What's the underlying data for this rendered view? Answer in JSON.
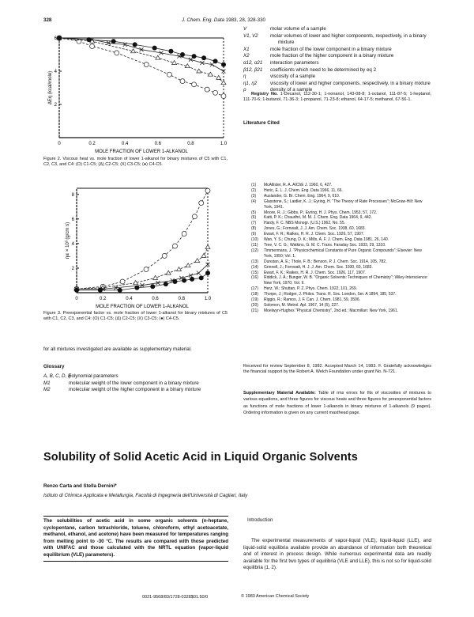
{
  "header": {
    "page_number": "328",
    "journal": "J. Chem. Eng. Data",
    "year_vol": "1983, 28, 328-330"
  },
  "figure2": {
    "caption": "Figure 2. Viscous heat vs. mole fraction of lower 1-alkanol for binary mixtures of C5 with C1, C2, C3, and C4: (O) C1-C5; (Δ) C2-C5; (X) C3-C5; (●) C4-C5.",
    "chart_data": {
      "type": "line",
      "xlabel": "MOLE FRACTION OF LOWER 1-ALKANOL",
      "ylabel": "ΔEη (kcal/mole)",
      "xlim": [
        0,
        1.0
      ],
      "ylim": [
        0,
        6
      ],
      "x_ticks": [
        "0",
        "0.2",
        "0.4",
        "0.6",
        "0.8",
        "1.0"
      ],
      "y_ticks": [
        "2",
        "4",
        "6"
      ],
      "series": [
        {
          "marker": "circle-open",
          "x": [
            0,
            0.12,
            0.2,
            0.35,
            0.53,
            0.67,
            0.75,
            0.82,
            0.9,
            0.95,
            1.0
          ],
          "y": [
            6.0,
            5.8,
            5.5,
            5.1,
            4.4,
            3.8,
            3.4,
            3.2,
            2.9,
            2.7,
            2.5
          ]
        },
        {
          "marker": "triangle",
          "x": [
            0,
            0.2,
            0.45,
            0.6,
            0.7,
            0.78,
            0.85,
            0.92,
            0.97,
            1.0
          ],
          "y": [
            6.0,
            5.8,
            5.2,
            4.8,
            4.5,
            4.3,
            4.0,
            3.8,
            3.6,
            3.3
          ]
        },
        {
          "marker": "cross",
          "x": [
            0,
            0.2,
            0.3,
            0.4,
            0.5,
            0.62,
            0.73,
            0.8,
            0.87,
            0.93,
            1.0
          ],
          "y": [
            6.0,
            5.9,
            5.7,
            5.6,
            5.3,
            5.1,
            4.9,
            4.7,
            4.5,
            4.4,
            4.0
          ]
        },
        {
          "marker": "circle-filled",
          "x": [
            0,
            0.18,
            0.33,
            0.46,
            0.58,
            0.68,
            0.75,
            0.82,
            0.88,
            0.95,
            1.0
          ],
          "y": [
            6.0,
            5.9,
            5.8,
            5.6,
            5.4,
            5.2,
            5.0,
            4.9,
            4.8,
            4.6,
            4.4
          ]
        }
      ]
    }
  },
  "figure3": {
    "caption": "Figure 3. Preexponential factor vs. mole fraction of lower 1-alkanol for binary mixtures of C5 with C1, C2, C3, and C4: (O) C1-C5; (Δ) C2-C5; (X) C3-C5; (●) C4-C5.",
    "chart_data": {
      "type": "line",
      "xlabel": "MOLE FRACTION OF LOWER 1-ALKANOL",
      "ylabel": "ηιε × 10³ (g/cm s)",
      "xlim": [
        0,
        1.0
      ],
      "ylim": [
        0,
        8.5
      ],
      "x_ticks": [
        "0",
        "0.2",
        "0.4",
        "0.6",
        "0.8",
        "1.0"
      ],
      "y_ticks": [
        "2",
        "4",
        "6",
        "8"
      ],
      "series": [
        {
          "marker": "circle-open",
          "x": [
            0,
            0.2,
            0.35,
            0.53,
            0.67,
            0.75,
            0.82,
            0.9,
            0.95,
            1.0
          ],
          "y": [
            0.3,
            0.5,
            0.9,
            1.9,
            3.0,
            3.8,
            4.8,
            6.2,
            7.3,
            8.3
          ]
        },
        {
          "marker": "triangle",
          "x": [
            0,
            0.2,
            0.45,
            0.6,
            0.7,
            0.78,
            0.85,
            0.92,
            0.97,
            1.0
          ],
          "y": [
            0.3,
            0.4,
            0.8,
            1.2,
            1.6,
            1.9,
            2.2,
            2.6,
            3.0,
            3.7
          ]
        },
        {
          "marker": "cross",
          "x": [
            0,
            0.2,
            0.3,
            0.5,
            0.62,
            0.73,
            0.8,
            0.87,
            0.93,
            1.0
          ],
          "y": [
            0.3,
            0.3,
            0.4,
            0.6,
            0.8,
            1.0,
            1.2,
            1.4,
            1.6,
            2.3
          ]
        },
        {
          "marker": "circle-filled",
          "x": [
            0,
            0.18,
            0.33,
            0.46,
            0.58,
            0.68,
            0.75,
            0.82,
            0.88,
            0.95,
            1.0
          ],
          "y": [
            0.2,
            0.2,
            0.2,
            0.4,
            0.5,
            0.7,
            0.9,
            1.0,
            1.1,
            1.2,
            1.6
          ]
        }
      ]
    }
  },
  "left_text": {
    "continuation": "for all mixtures investigated are available as supplementary material.",
    "glossary_heading": "Glossary",
    "glossary": [
      {
        "symbol": "A, B, C, D, E",
        "def": "polynomial parameters"
      },
      {
        "symbol": "M1",
        "def": "molecular weight of the lower component in a binary mixture"
      },
      {
        "symbol": "M2",
        "def": "molecular weight of the higher component in a binary mixture"
      }
    ]
  },
  "nomenclature": [
    {
      "symbol": "V",
      "def": "molar volume of a sample"
    },
    {
      "symbol": "V1, V2",
      "def": "molar volumes of lower and higher components, respectively, in a binary mixture"
    },
    {
      "symbol": "X1",
      "def": "mole fraction of the lower component in a binary mixture"
    },
    {
      "symbol": "X2",
      "def": "mole fraction of the higher component in a binary mixture"
    },
    {
      "symbol": "α12, α21",
      "def": "interaction parameters"
    },
    {
      "symbol": "β12, β21",
      "def": "coefficients which need to be determined by eq 2"
    },
    {
      "symbol": "η",
      "def": "viscosity of a sample"
    },
    {
      "symbol": "η1, η2",
      "def": "viscosity of lower and higher components, respectively, in a binary mixture"
    },
    {
      "symbol": "ρ",
      "def": "density of a sample"
    }
  ],
  "registry": {
    "label": "Registry No.",
    "text": "1-Decanol, 112-30-1; 1-nonanol, 143-08-8; 1-octanol, 111-87-5; 1-heptanol, 111-70-6; 1-butanol, 71-36-3; 1-propanol, 71-23-8; ethanol, 64-17-5; methanol, 67-56-1."
  },
  "literature": {
    "heading": "Literature Cited",
    "refs": [
      "McAllister, R. A. AIChE J. 1960, 6, 427.",
      "Heric, E. L. J. Chem. Eng. Data 1966, 11, 66.",
      "Auslander, G. Br. Chem. Eng. 1964, 9, 610.",
      "Glasstone, S.; Laidler, K. J.; Eyring, H. \"The Theory of Rate Processes\"; McGraw-Hill: New York, 1941.",
      "Moore, R. J.; Gibbs, P.; Eyring, H. J. Phys. Chem. 1953, 57, 172.",
      "Katti, P. K.; Chaudhri, M. M. J. Chem. Eng. Data 1964, 9, 442.",
      "Hardy, F. C. NBS Monogr. (U.S.) 1962, No. 55.",
      "Jones, G.; Fornwalt, J. J. Am. Chem. Soc. 1938, 60, 1683.",
      "Ewart, F. R.; Raikes, H. R. J. Chem. Soc. 1926, 57, 1907.",
      "Wan, Y. S.; Chung, D. K.; Mills, A. F. J. Chem. Eng. Data 1981, 26, 140.",
      "Tree, V. C. G.; Watkins, G. M. C. Trans. Faraday Soc. 1933, 29, 1310.",
      "Timmermans, J. \"Physicochemical Constants of Pure Organic Compounds\"; Elsevier: New York, 1950; Vol. 1.",
      "Dunstan, A. E.; Thole, F. B.; Benson, P. J. Chem. Soc. 1914, 105, 782.",
      "Grinnell, J.; Fornwalt, H. J. J. Am. Chem. Soc. 1930, 60, 1683.",
      "Ewart, F. K.; Raikes, H. R. J. Chem. Soc. 1926, 117, 1907.",
      "Riddick, J. A.; Bunger, W. B. \"Organic Solvents: Techniques of Chemistry\"; Wiley-Interscience: New York, 1970; Vol. II.",
      "Herz, W.; Shuttan, P. Z. Phys. Chem. 1922, 101, 269.",
      "Thorpe, J.; Rodger, J. Philos. Trans. R. Soc. London, Ser. A 1894, 185, 537.",
      "Riggio, R.; Ramos, J. F. Can. J. Chem. 1981, 59, 3506.",
      "Solomon, M. Metrol. Apl. 1967, 14 (5), 227.",
      "Moelwyn-Hughes \"Physical Chemistry\", 2nd ed.; Macmillan: New York, 1961."
    ]
  },
  "received": "Received for review September 8, 1982. Accepted March 14, 1983. F. Gratefully acknowledges the financial support by the Robert A. Welch Foundation under grant No. N-721.",
  "supplementary": {
    "label": "Supplementary Material Available:",
    "text": "Table of rms errors for fits of viscosities of mixtures to various equations, and three figures for viscous heats and three figures for preexponential factors as functions of mole fractions of lower 1-alkanols in binary mixtures of 1-alkanols (9 pages). Ordering information is given on any current masthead page."
  },
  "article": {
    "title": "Solubility of Solid Acetic Acid in Liquid Organic Solvents",
    "authors": "Renzo Carta and Stella Dernini*",
    "affiliation": "Istituto di Chimica Applicata e Metallurgia, Facoltà di Ingegneria dell'Università di Cagliari, Italy",
    "abstract": "The solubilities of acetic acid in some organic solvents (n-heptane, cyclopentane, carbon tetrachloride, toluene, chloroform, ethyl acetoacetate, methanol, ethanol, and acetone) have been measured for temperatures ranging from melting point to -30 °C. The results are compared with those predicted with UNIFAC and those calculated with the NRTL equation (vapor-liquid equilibrium (VLE) parameters).",
    "intro_heading": "Introduction",
    "intro_text": "The experimental measurements of vapor-liquid (VLE), liquid-liquid (LLE), and liquid-solid equilibria available provide an abundance of information both theoretical and of interest in process design. While numerous experimental data are readily available for the first two types of equilibria (VLE and LLE), this is not so for liquid-solid equilibria (1, 2).",
    "code": "0021-9568/83/1728-0328$01.50/0",
    "copyright": "© 1983 American Chemical Society"
  }
}
